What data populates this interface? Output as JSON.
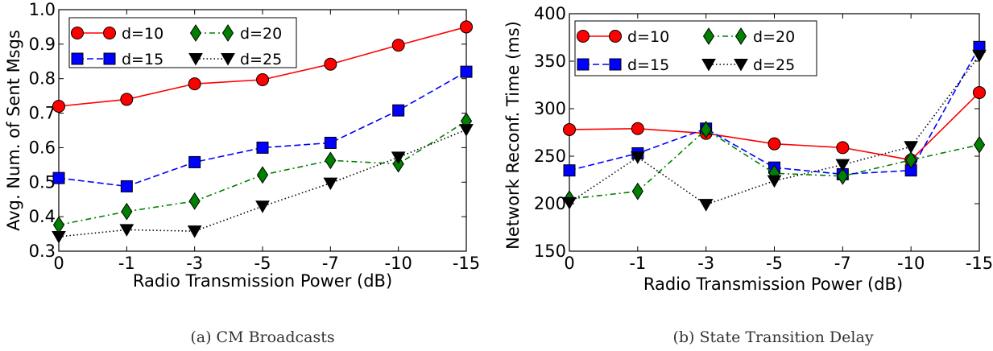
{
  "figure": {
    "captions": [
      "(a) CM Broadcasts",
      "(b) State Transition Delay"
    ]
  },
  "chart_data": [
    {
      "type": "line",
      "subfigure": "a",
      "caption": "(a) CM Broadcasts",
      "xlabel": "Radio Transmission Power (dB)",
      "ylabel": "Avg. Num. of Sent Msgs",
      "categories": [
        "0",
        "-1",
        "-3",
        "-5",
        "-7",
        "-10",
        "-15"
      ],
      "ylim": [
        0.3,
        1.0
      ],
      "yticks": [
        "0.3",
        "0.4",
        "0.5",
        "0.6",
        "0.7",
        "0.8",
        "0.9",
        "1.0"
      ],
      "grid": false,
      "legend_position": "top-left",
      "series": [
        {
          "name": "d=10",
          "values": [
            0.72,
            0.74,
            0.785,
            0.797,
            0.842,
            0.897,
            0.95
          ],
          "color": "#ff0000",
          "marker": "circle",
          "dash": "solid"
        },
        {
          "name": "d=15",
          "values": [
            0.512,
            0.488,
            0.558,
            0.6,
            0.614,
            0.708,
            0.82
          ],
          "color": "#0000ff",
          "marker": "square",
          "dash": "dashed"
        },
        {
          "name": "d=20",
          "values": [
            0.376,
            0.415,
            0.445,
            0.521,
            0.563,
            0.553,
            0.677
          ],
          "color": "#008000",
          "marker": "diamond",
          "dash": "dashdot"
        },
        {
          "name": "d=25",
          "values": [
            0.342,
            0.362,
            0.358,
            0.43,
            0.497,
            0.572,
            0.652
          ],
          "color": "#000000",
          "marker": "triangle-down",
          "dash": "dotted"
        }
      ]
    },
    {
      "type": "line",
      "subfigure": "b",
      "caption": "(b) State Transition Delay",
      "xlabel": "Radio Transmission Power (dB)",
      "ylabel": "Network Reconf. Time (ms)",
      "categories": [
        "0",
        "-1",
        "-3",
        "-5",
        "-7",
        "-10",
        "-15"
      ],
      "ylim": [
        150,
        400
      ],
      "yticks": [
        "150",
        "200",
        "250",
        "300",
        "350",
        "400"
      ],
      "grid": false,
      "legend_position": "top-left",
      "series": [
        {
          "name": "d=10",
          "values": [
            278,
            279,
            274,
            263,
            259,
            246,
            317
          ],
          "color": "#ff0000",
          "marker": "circle",
          "dash": "solid"
        },
        {
          "name": "d=15",
          "values": [
            235,
            253,
            279,
            238,
            231,
            235,
            365
          ],
          "color": "#0000ff",
          "marker": "square",
          "dash": "dashed"
        },
        {
          "name": "d=20",
          "values": [
            205,
            213,
            278,
            232,
            229,
            246,
            262
          ],
          "color": "#008000",
          "marker": "diamond",
          "dash": "dashdot"
        },
        {
          "name": "d=25",
          "values": [
            201,
            249,
            199,
            224,
            241,
            260,
            356
          ],
          "color": "#000000",
          "marker": "triangle-down",
          "dash": "dotted"
        }
      ]
    }
  ]
}
